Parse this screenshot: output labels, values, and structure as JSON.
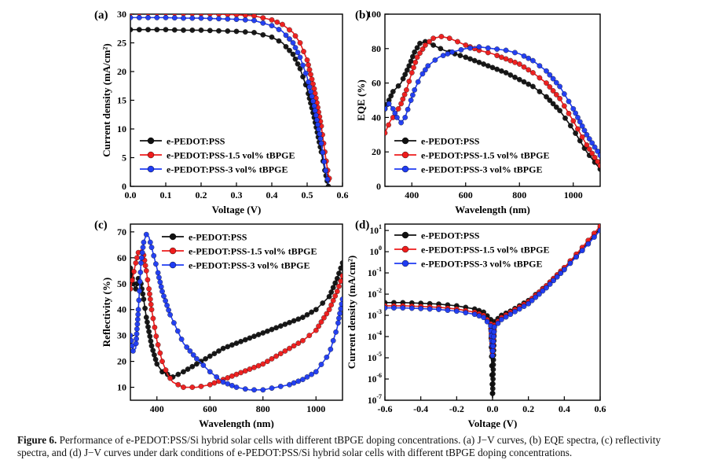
{
  "figure": {
    "caption_label": "Figure 6.",
    "caption_text": "Performance of e-PEDOT:PSS/Si hybrid solar cells with different tBPGE doping concentrations. (a) J−V curves, (b) EQE spectra, (c) reflectivity spectra, and (d) J−V curves under dark conditions of e-PEDOT:PSS/Si hybrid solar cells with different tBPGE doping concentrations."
  },
  "colors": {
    "black": "#111111",
    "red": "#ee1c1c",
    "blue": "#1f3cf2"
  },
  "chart_data": [
    {
      "panel": "(a)",
      "type": "line",
      "xlabel": "Voltage (V)",
      "ylabel": "Current density (mA/cm²)",
      "xlim": [
        0.0,
        0.6
      ],
      "ylim": [
        0,
        30
      ],
      "xticks": [
        "0.0",
        "0.1",
        "0.2",
        "0.3",
        "0.4",
        "0.5",
        "0.6"
      ],
      "xtick_values": [
        0.0,
        0.1,
        0.2,
        0.3,
        0.4,
        0.5,
        0.6
      ],
      "yticks": [
        "0",
        "5",
        "10",
        "15",
        "20",
        "25",
        "30"
      ],
      "ytick_values": [
        0,
        5,
        10,
        15,
        20,
        25,
        30
      ],
      "legend_position": "lower-left",
      "series": [
        {
          "name": "e-PEDOT:PSS",
          "color": "black",
          "x": [
            0,
            0.05,
            0.1,
            0.15,
            0.2,
            0.25,
            0.3,
            0.35,
            0.4,
            0.43,
            0.46,
            0.48,
            0.5,
            0.52,
            0.54,
            0.55,
            0.56
          ],
          "y": [
            27.3,
            27.3,
            27.3,
            27.2,
            27.2,
            27.1,
            27.0,
            26.8,
            26.0,
            25.0,
            23.0,
            20.5,
            17.0,
            12.0,
            6.0,
            2.8,
            0.0
          ]
        },
        {
          "name": "e-PEDOT:PSS-1.5 vol% tBPGE",
          "color": "red",
          "x": [
            0,
            0.05,
            0.1,
            0.15,
            0.2,
            0.25,
            0.3,
            0.35,
            0.4,
            0.43,
            0.46,
            0.48,
            0.5,
            0.52,
            0.54,
            0.55,
            0.56,
            0.565
          ],
          "y": [
            30.2,
            30.2,
            30.2,
            30.1,
            30.1,
            30.0,
            29.9,
            29.7,
            29.0,
            28.2,
            26.8,
            25.0,
            22.0,
            17.0,
            10.5,
            6.0,
            2.0,
            0.8
          ]
        },
        {
          "name": "e-PEDOT:PSS-3 vol% tBPGE",
          "color": "blue",
          "x": [
            0,
            0.05,
            0.1,
            0.15,
            0.2,
            0.25,
            0.3,
            0.35,
            0.4,
            0.43,
            0.46,
            0.48,
            0.5,
            0.52,
            0.54,
            0.55,
            0.56
          ],
          "y": [
            29.4,
            29.4,
            29.4,
            29.3,
            29.3,
            29.2,
            29.1,
            28.9,
            28.0,
            27.0,
            25.0,
            22.5,
            19.0,
            14.0,
            7.5,
            3.5,
            0.5
          ]
        }
      ]
    },
    {
      "panel": "(b)",
      "type": "line",
      "xlabel": "Wavelength (nm)",
      "ylabel": "EQE (%)",
      "xlim": [
        300,
        1100
      ],
      "ylim": [
        0,
        100
      ],
      "xticks": [
        "400",
        "600",
        "800",
        "1000"
      ],
      "xtick_values": [
        400,
        600,
        800,
        1000
      ],
      "yticks": [
        "0",
        "20",
        "40",
        "60",
        "80",
        "100"
      ],
      "ytick_values": [
        0,
        20,
        40,
        60,
        80,
        100
      ],
      "legend_position": "lower-left",
      "series": [
        {
          "name": "e-PEDOT:PSS",
          "color": "black",
          "x": [
            300,
            330,
            360,
            390,
            410,
            430,
            450,
            480,
            520,
            560,
            600,
            650,
            700,
            750,
            800,
            850,
            900,
            950,
            1000,
            1050,
            1100
          ],
          "y": [
            45,
            55,
            60,
            70,
            78,
            83,
            84,
            82,
            79,
            77,
            75,
            72,
            69,
            66,
            62,
            58,
            52,
            44,
            33,
            20,
            10
          ]
        },
        {
          "name": "e-PEDOT:PSS-1.5 vol% tBPGE",
          "color": "red",
          "x": [
            300,
            320,
            340,
            360,
            380,
            400,
            420,
            450,
            480,
            510,
            540,
            570,
            600,
            650,
            700,
            750,
            800,
            850,
            900,
            950,
            1000,
            1050,
            1100
          ],
          "y": [
            31,
            38,
            42,
            48,
            56,
            66,
            75,
            82,
            86,
            87,
            86,
            84,
            82,
            79,
            77,
            74,
            71,
            66,
            60,
            51,
            38,
            24,
            12
          ]
        },
        {
          "name": "e-PEDOT:PSS-3 vol% tBPGE",
          "color": "blue",
          "x": [
            300,
            315,
            330,
            345,
            360,
            375,
            390,
            410,
            430,
            460,
            500,
            550,
            600,
            650,
            700,
            750,
            800,
            850,
            900,
            950,
            1000,
            1050,
            1100
          ],
          "y": [
            45,
            48,
            45,
            40,
            37,
            40,
            47,
            56,
            63,
            70,
            75,
            78,
            80,
            81,
            80,
            79,
            77,
            73,
            67,
            58,
            45,
            30,
            18
          ]
        }
      ]
    },
    {
      "panel": "(c)",
      "type": "line",
      "xlabel": "Wavelength (nm)",
      "ylabel": "Reflectivity (%)",
      "xlim": [
        300,
        1100
      ],
      "ylim": [
        5,
        73
      ],
      "xticks": [
        "400",
        "600",
        "800",
        "1000"
      ],
      "xtick_values": [
        400,
        600,
        800,
        1000
      ],
      "yticks": [
        "10",
        "20",
        "30",
        "40",
        "50",
        "60",
        "70"
      ],
      "ytick_values": [
        10,
        20,
        30,
        40,
        50,
        60,
        70
      ],
      "legend_position": "top-right",
      "series": [
        {
          "name": "e-PEDOT:PSS",
          "color": "black",
          "x": [
            300,
            310,
            320,
            330,
            340,
            350,
            360,
            380,
            400,
            420,
            440,
            460,
            480,
            500,
            550,
            600,
            650,
            700,
            750,
            800,
            850,
            900,
            950,
            1000,
            1050,
            1080,
            1100
          ],
          "y": [
            56,
            50,
            48,
            52,
            50,
            44,
            37,
            26,
            19,
            16,
            15,
            14,
            15,
            16,
            19,
            22,
            25,
            27,
            29,
            31,
            33,
            35,
            37,
            40,
            45,
            52,
            58
          ]
        },
        {
          "name": "e-PEDOT:PSS-1.5 vol% tBPGE",
          "color": "red",
          "x": [
            300,
            310,
            320,
            330,
            340,
            350,
            360,
            370,
            380,
            400,
            420,
            440,
            460,
            480,
            500,
            550,
            600,
            650,
            700,
            750,
            800,
            850,
            900,
            950,
            1000,
            1050,
            1080,
            1100
          ],
          "y": [
            48,
            53,
            58,
            62,
            63,
            61,
            55,
            48,
            40,
            28,
            20,
            15,
            12,
            11,
            10,
            10,
            11,
            13,
            15,
            17,
            19,
            22,
            25,
            28,
            32,
            40,
            47,
            53
          ]
        },
        {
          "name": "e-PEDOT:PSS-3 vol% tBPGE",
          "color": "blue",
          "x": [
            300,
            310,
            320,
            330,
            340,
            350,
            360,
            370,
            380,
            400,
            420,
            450,
            500,
            550,
            600,
            650,
            700,
            750,
            800,
            850,
            900,
            950,
            1000,
            1050,
            1080,
            1100
          ],
          "y": [
            30,
            24,
            25,
            40,
            58,
            66,
            69,
            68,
            64,
            56,
            47,
            38,
            27,
            21,
            16,
            12,
            10,
            9,
            9,
            10,
            11,
            13,
            16,
            23,
            33,
            44
          ]
        }
      ]
    },
    {
      "panel": "(d)",
      "type": "line",
      "yscale": "log",
      "xlabel": "Voltage (V)",
      "ylabel": "Current density (mA/cm²)",
      "xlim": [
        -0.6,
        0.6
      ],
      "ylim_log10": [
        -7,
        1.3
      ],
      "xticks": [
        "-0.6",
        "-0.4",
        "-0.2",
        "0.0",
        "0.2",
        "0.4",
        "0.6"
      ],
      "xtick_values": [
        -0.6,
        -0.4,
        -0.2,
        0.0,
        0.2,
        0.4,
        0.6
      ],
      "yticks": [
        "10^-7",
        "10^-6",
        "10^-5",
        "10^-4",
        "10^-3",
        "10^-2",
        "10^-1",
        "10^0",
        "10^1"
      ],
      "ytick_exponents": [
        -7,
        -6,
        -5,
        -4,
        -3,
        -2,
        -1,
        0,
        1
      ],
      "legend_position": "top-left",
      "series": [
        {
          "name": "e-PEDOT:PSS",
          "color": "black",
          "x": [
            -0.6,
            -0.5,
            -0.4,
            -0.3,
            -0.2,
            -0.1,
            -0.05,
            -0.01,
            0.0,
            0.01,
            0.05,
            0.1,
            0.2,
            0.3,
            0.4,
            0.5,
            0.6
          ],
          "log10_y": [
            -2.4,
            -2.4,
            -2.43,
            -2.47,
            -2.55,
            -2.7,
            -2.85,
            -3.2,
            -6.9,
            -3.3,
            -3.0,
            -2.8,
            -2.3,
            -1.6,
            -0.8,
            0.1,
            1.1
          ]
        },
        {
          "name": "e-PEDOT:PSS-1.5 vol% tBPGE",
          "color": "red",
          "x": [
            -0.6,
            -0.5,
            -0.4,
            -0.3,
            -0.2,
            -0.1,
            -0.05,
            -0.01,
            0.0,
            0.01,
            0.05,
            0.1,
            0.2,
            0.3,
            0.4,
            0.5,
            0.6
          ],
          "log10_y": [
            -2.55,
            -2.55,
            -2.58,
            -2.62,
            -2.7,
            -2.85,
            -3.0,
            -3.4,
            -4.8,
            -3.45,
            -3.1,
            -2.85,
            -2.35,
            -1.6,
            -0.75,
            0.2,
            1.2
          ]
        },
        {
          "name": "e-PEDOT:PSS-3 vol% tBPGE",
          "color": "blue",
          "x": [
            -0.6,
            -0.5,
            -0.4,
            -0.3,
            -0.2,
            -0.1,
            -0.05,
            -0.01,
            0.0,
            0.01,
            0.05,
            0.1,
            0.2,
            0.3,
            0.4,
            0.5,
            0.6
          ],
          "log10_y": [
            -2.65,
            -2.65,
            -2.68,
            -2.72,
            -2.8,
            -2.95,
            -3.1,
            -3.5,
            -4.9,
            -3.55,
            -3.2,
            -2.95,
            -2.45,
            -1.7,
            -0.85,
            0.05,
            1.0
          ]
        }
      ]
    }
  ]
}
